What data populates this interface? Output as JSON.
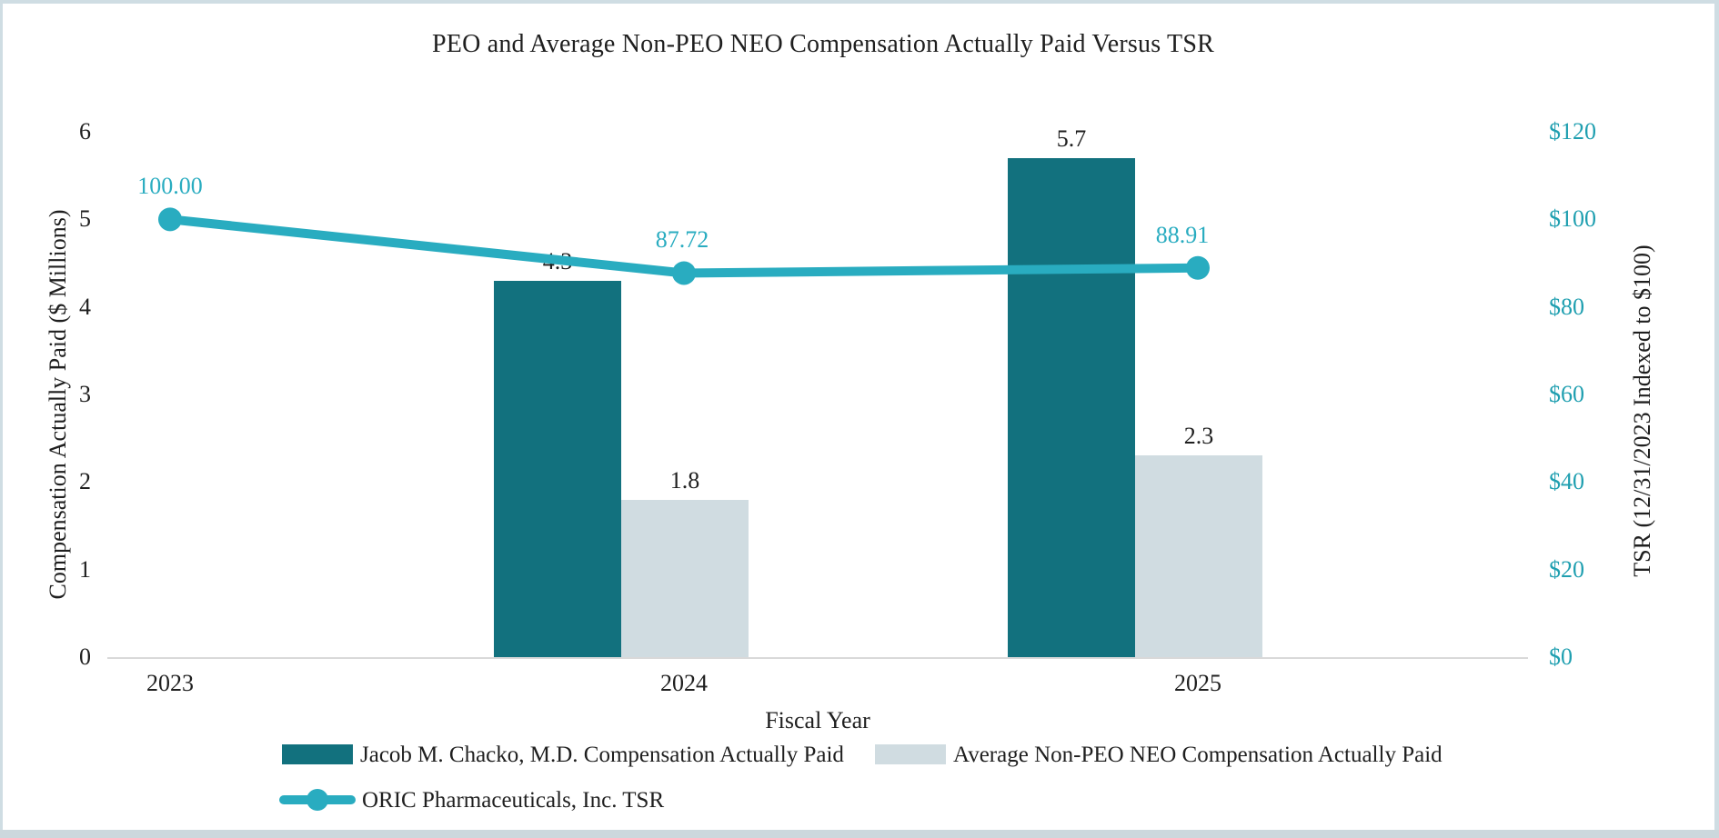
{
  "title": "PEO and Average Non-PEO NEO Compensation Actually Paid Versus TSR",
  "chart_data": {
    "type": "combo-bar-line",
    "categories": [
      "2023",
      "2024",
      "2025"
    ],
    "series": [
      {
        "name": "Jacob M. Chacko, M.D. Compensation Actually Paid",
        "type": "bar",
        "axis": "left",
        "values": [
          null,
          4.3,
          5.7
        ],
        "labels": [
          "",
          "4.3",
          "5.7"
        ],
        "color": "#12717e"
      },
      {
        "name": "Average Non-PEO NEO Compensation Actually Paid",
        "type": "bar",
        "axis": "left",
        "values": [
          null,
          1.8,
          2.3
        ],
        "labels": [
          "",
          "1.8",
          "2.3"
        ],
        "color": "#d0dce1"
      },
      {
        "name": "ORIC Pharmaceuticals, Inc. TSR",
        "type": "line",
        "axis": "right",
        "values": [
          100.0,
          87.72,
          88.91
        ],
        "labels": [
          "100.00",
          "87.72",
          "88.91"
        ],
        "color": "#29acc0"
      }
    ],
    "left_axis": {
      "title": "Compensation Actually Paid ($ Millions)",
      "ticks": [
        "0",
        "1",
        "2",
        "3",
        "4",
        "5",
        "6"
      ],
      "min": 0,
      "max": 6
    },
    "right_axis": {
      "title": "TSR (12/31/2023 Indexed to $100)",
      "ticks": [
        "$0",
        "$20",
        "$40",
        "$60",
        "$80",
        "$100",
        "$120"
      ],
      "min": 0,
      "max": 120,
      "label_color": "#1f9fb0"
    },
    "x_axis": {
      "title": "Fiscal Year"
    },
    "layout": {
      "grid": false,
      "legend_position": "bottom",
      "axis_line_color": "#d9d9d9",
      "border_color": "#cfdde3"
    }
  }
}
